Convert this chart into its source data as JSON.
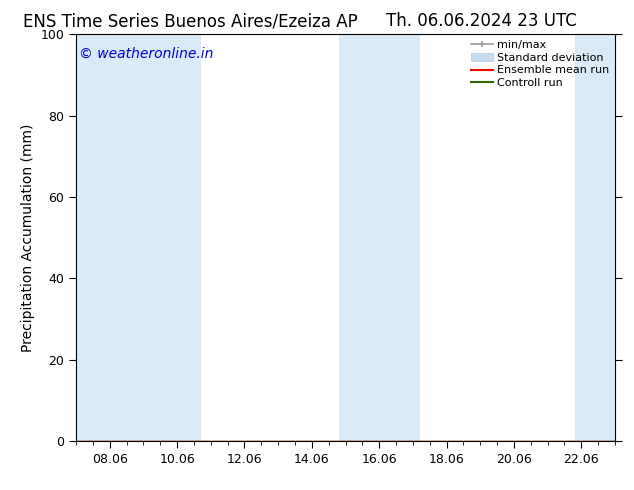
{
  "title_left": "ENS Time Series Buenos Aires/Ezeiza AP",
  "title_right": "Th. 06.06.2024 23 UTC",
  "ylabel": "Precipitation Accumulation (mm)",
  "watermark": "© weatheronline.in",
  "watermark_color": "#0000cc",
  "ylim": [
    0,
    100
  ],
  "yticks": [
    0,
    20,
    40,
    60,
    80,
    100
  ],
  "xtick_positions": [
    8,
    10,
    12,
    14,
    16,
    18,
    20,
    22
  ],
  "xtick_labels": [
    "08.06",
    "10.06",
    "12.06",
    "14.06",
    "16.06",
    "18.06",
    "20.06",
    "22.06"
  ],
  "x_min": 7.0,
  "x_max": 23.0,
  "background_color": "#ffffff",
  "plot_bg_color": "#ffffff",
  "band_color": "#daeaf7",
  "shaded_bands": [
    [
      7.0,
      9.5
    ],
    [
      9.5,
      10.7
    ],
    [
      14.8,
      17.2
    ],
    [
      21.8,
      23.0
    ]
  ],
  "legend_items": [
    {
      "label": "min/max",
      "type": "errorbar",
      "color": "#999999"
    },
    {
      "label": "Standard deviation",
      "type": "patch",
      "color": "#c8ddf0"
    },
    {
      "label": "Ensemble mean run",
      "type": "line",
      "color": "#ff0000"
    },
    {
      "label": "Controll run",
      "type": "line",
      "color": "#336600"
    }
  ],
  "title_fontsize": 12,
  "axis_label_fontsize": 10,
  "tick_fontsize": 9,
  "watermark_fontsize": 10,
  "legend_fontsize": 8
}
